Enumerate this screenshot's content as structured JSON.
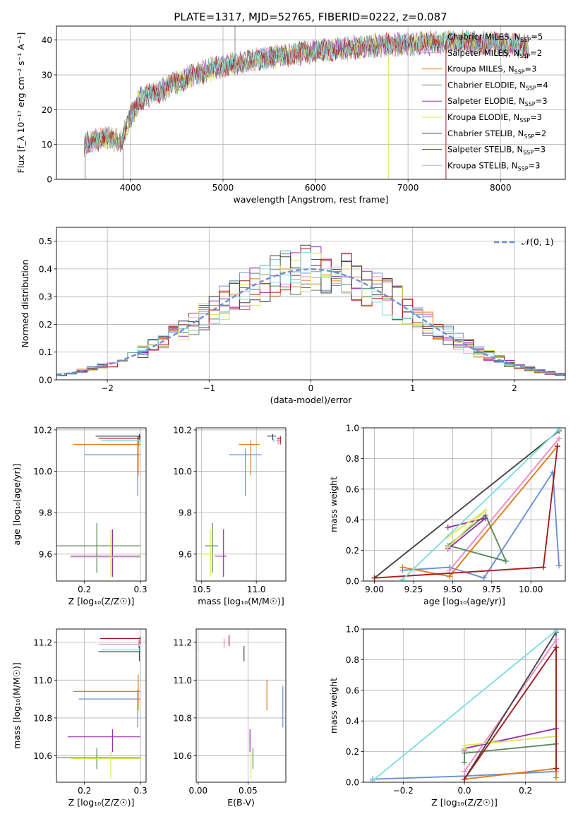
{
  "colors": {
    "chabrier_miles": "#6a8fd4",
    "salpeter_miles": "#e78ac3",
    "kroupa_miles": "#e07b18",
    "chabrier_elodie": "#5b8a5b",
    "salpeter_elodie": "#9a2bb0",
    "kroupa_elodie": "#d9e85a",
    "chabrier_stelib": "#444444",
    "salpeter_stelib": "#a51d1d",
    "kroupa_stelib": "#7fdde0",
    "normal_curve": "#6a8fd4"
  },
  "chart_data": [
    {
      "type": "line",
      "title": "PLATE=1317, MJD=52765, FIBERID=0222, z=0.087",
      "xlabel": "wavelength [Angstrom, rest frame]",
      "ylabel": "Flux [f_λ 10⁻¹⁷ erg cm⁻² s⁻¹ A⁻¹]",
      "xlim": [
        3200,
        8700
      ],
      "ylim": [
        0,
        44
      ],
      "xticks": [
        "4000",
        "5000",
        "6000",
        "7000",
        "8000"
      ],
      "yticks": [
        "0",
        "10",
        "20",
        "30",
        "40"
      ],
      "legend_position": "top-right",
      "legend": [
        {
          "label": "Chabrier MILES, N",
          "sub": "SSP",
          "tail": "=5"
        },
        {
          "label": "Salpeter MILES, N",
          "sub": "SSP",
          "tail": "=2"
        },
        {
          "label": "Kroupa MILES, N",
          "sub": "SSP",
          "tail": "=3"
        },
        {
          "label": "Chabrier ELODIE, N",
          "sub": "SSP",
          "tail": "=4"
        },
        {
          "label": "Salpeter ELODIE, N",
          "sub": "SSP",
          "tail": "=3"
        },
        {
          "label": "Kroupa ELODIE, N",
          "sub": "SSP",
          "tail": "=3"
        },
        {
          "label": "Chabrier STELIB, N",
          "sub": "SSP",
          "tail": "=2"
        },
        {
          "label": "Salpeter STELIB, N",
          "sub": "SSP",
          "tail": "=3"
        },
        {
          "label": "Kroupa STELIB, N",
          "sub": "SSP",
          "tail": "=3"
        }
      ],
      "continuum_x": [
        3500,
        3700,
        3900,
        4000,
        4100,
        4300,
        4500,
        4800,
        5100,
        5500,
        5900,
        6300,
        6700,
        7100,
        7500,
        7900,
        8300
      ],
      "continuum_y": [
        10,
        12,
        11,
        18,
        23,
        25,
        28,
        31,
        33,
        35,
        36.5,
        37.5,
        38.5,
        39,
        39.5,
        39,
        38
      ]
    },
    {
      "type": "bar",
      "subtype": "step-histogram",
      "xlabel": "(data-model)/error",
      "ylabel": "Normed distribution",
      "xlim": [
        -2.5,
        2.5
      ],
      "ylim": [
        0,
        0.55
      ],
      "xticks": [
        "−2",
        "−1",
        "0",
        "1",
        "2"
      ],
      "yticks": [
        "0.0",
        "0.1",
        "0.2",
        "0.3",
        "0.4",
        "0.5"
      ],
      "legend_label": "𝒩(0, 1)",
      "legend_position": "top-right",
      "bin_width": 0.1
    },
    {
      "type": "scatter",
      "xlabel": "Z [log₁₀(Z/Z☉)]",
      "ylabel": "age  [log₁₀(age/yr)]",
      "xlim": [
        0.15,
        0.31
      ],
      "ylim": [
        9.47,
        10.21
      ],
      "xticks": [
        "0.2",
        "0.3"
      ],
      "yticks": [
        "9.6",
        "9.8",
        "10.0",
        "10.2"
      ],
      "points": [
        {
          "model": "chabrier_miles",
          "x": 0.295,
          "xerr": [
            0.2,
            0.3
          ],
          "y": 10.08,
          "yerr": [
            9.88,
            10.17
          ]
        },
        {
          "model": "salpeter_miles",
          "x": 0.297,
          "xerr": [
            0.23,
            0.3
          ],
          "y": 10.16,
          "yerr": [
            10.12,
            10.17
          ]
        },
        {
          "model": "kroupa_miles",
          "x": 0.296,
          "xerr": [
            0.18,
            0.3
          ],
          "y": 10.13,
          "yerr": [
            9.98,
            10.17
          ]
        },
        {
          "model": "chabrier_elodie",
          "x": 0.222,
          "xerr": [
            0.15,
            0.3
          ],
          "y": 9.64,
          "yerr": [
            9.51,
            9.75
          ]
        },
        {
          "model": "salpeter_elodie",
          "x": 0.25,
          "xerr": [
            0.175,
            0.3
          ],
          "y": 9.59,
          "yerr": [
            9.49,
            9.72
          ]
        },
        {
          "model": "kroupa_elodie",
          "x": 0.247,
          "xerr": [
            0.175,
            0.3
          ],
          "y": 9.585,
          "yerr": [
            9.49,
            9.72
          ]
        },
        {
          "model": "chabrier_stelib",
          "x": 0.298,
          "xerr": [
            0.22,
            0.3
          ],
          "y": 10.17,
          "yerr": [
            10.15,
            10.18
          ]
        },
        {
          "model": "salpeter_stelib",
          "x": 0.299,
          "xerr": [
            0.225,
            0.3
          ],
          "y": 10.16,
          "yerr": [
            10.14,
            10.17
          ]
        },
        {
          "model": "kroupa_stelib",
          "x": 0.299,
          "xerr": [
            0.23,
            0.3
          ],
          "y": 10.15,
          "yerr": [
            10.14,
            10.16
          ]
        }
      ]
    },
    {
      "type": "scatter",
      "xlabel": "mass [log₁₀(M/M☉)]",
      "ylabel": "",
      "xlim": [
        10.45,
        11.27
      ],
      "ylim": [
        9.47,
        10.21
      ],
      "xticks": [
        "10.5",
        "11.0"
      ],
      "yticks": [
        "9.6",
        "9.8",
        "10.0",
        "10.2"
      ],
      "points": [
        {
          "model": "chabrier_miles",
          "x": 10.9,
          "xerr": [
            10.75,
            11.05
          ],
          "y": 10.08,
          "yerr": [
            9.88,
            10.11
          ]
        },
        {
          "model": "salpeter_miles",
          "x": 11.2,
          "xerr": [
            11.18,
            11.22
          ],
          "y": 10.15,
          "yerr": [
            10.13,
            10.16
          ]
        },
        {
          "model": "kroupa_miles",
          "x": 10.95,
          "xerr": [
            10.84,
            11.03
          ],
          "y": 10.13,
          "yerr": [
            9.98,
            10.15
          ]
        },
        {
          "model": "chabrier_elodie",
          "x": 10.6,
          "xerr": [
            10.53,
            10.65
          ],
          "y": 9.64,
          "yerr": [
            9.51,
            9.75
          ]
        },
        {
          "model": "salpeter_elodie",
          "x": 10.7,
          "xerr": [
            10.62,
            10.73
          ],
          "y": 9.59,
          "yerr": [
            9.49,
            9.72
          ]
        },
        {
          "model": "kroupa_elodie",
          "x": 10.58,
          "xerr": [
            10.48,
            10.62
          ],
          "y": 9.6,
          "yerr": [
            9.49,
            9.72
          ]
        },
        {
          "model": "chabrier_stelib",
          "x": 11.15,
          "xerr": [
            11.1,
            11.18
          ],
          "y": 10.17,
          "yerr": [
            10.15,
            10.18
          ]
        },
        {
          "model": "salpeter_stelib",
          "x": 11.22,
          "xerr": [
            11.19,
            11.23
          ],
          "y": 10.16,
          "yerr": [
            10.13,
            10.17
          ]
        },
        {
          "model": "kroupa_stelib",
          "x": 11.16,
          "xerr": [
            11.15,
            11.17
          ],
          "y": 10.15,
          "yerr": [
            10.14,
            10.16
          ]
        }
      ]
    },
    {
      "type": "line",
      "xlabel": "age  [log₁₀(age/yr)]",
      "ylabel": "mass weight",
      "xlim": [
        8.93,
        10.22
      ],
      "ylim": [
        0,
        1
      ],
      "xticks": [
        "9.00",
        "9.25",
        "9.50",
        "9.75",
        "10.00"
      ],
      "yticks": [
        "0.0",
        "0.2",
        "0.4",
        "0.6",
        "0.8",
        "1.0"
      ],
      "series": [
        {
          "model": "chabrier_miles",
          "x": [
            9.18,
            9.48,
            9.7,
            10.14,
            10.18
          ],
          "y": [
            0.07,
            0.09,
            0.02,
            0.71,
            0.1
          ]
        },
        {
          "model": "salpeter_miles",
          "x": [
            9.48,
            10.18
          ],
          "y": [
            0.07,
            0.93
          ]
        },
        {
          "model": "kroupa_miles",
          "x": [
            9.18,
            9.48,
            10.17
          ],
          "y": [
            0.09,
            0.03,
            0.88
          ]
        },
        {
          "model": "chabrier_elodie",
          "x": [
            9.47,
            9.71,
            9.84,
            9.48
          ],
          "y": [
            0.23,
            0.43,
            0.13,
            0.23
          ]
        },
        {
          "model": "salpeter_elodie",
          "x": [
            9.47,
            9.71,
            9.47
          ],
          "y": [
            0.21,
            0.41,
            0.35
          ]
        },
        {
          "model": "kroupa_elodie",
          "x": [
            9.47,
            9.71,
            9.47
          ],
          "y": [
            0.22,
            0.46,
            0.29
          ]
        },
        {
          "model": "chabrier_stelib",
          "x": [
            9.0,
            10.18
          ],
          "y": [
            0.02,
            0.98
          ]
        },
        {
          "model": "salpeter_stelib",
          "x": [
            9.0,
            10.08,
            10.17
          ],
          "y": [
            0.02,
            0.09,
            0.88
          ]
        },
        {
          "model": "kroupa_stelib",
          "x": [
            9.18,
            10.18
          ],
          "y": [
            0.01,
            0.99
          ]
        }
      ]
    },
    {
      "type": "scatter",
      "xlabel": "Z [log₁₀(Z/Z☉)]",
      "ylabel": "mass [log₁₀(M/M☉)]",
      "xlim": [
        0.15,
        0.31
      ],
      "ylim": [
        10.46,
        11.27
      ],
      "xticks": [
        "0.2",
        "0.3"
      ],
      "yticks": [
        "10.6",
        "10.8",
        "11.0",
        "11.2"
      ],
      "points": [
        {
          "model": "chabrier_miles",
          "x": 0.295,
          "xerr": [
            0.19,
            0.3
          ],
          "y": 10.9,
          "yerr": [
            10.75,
            10.95
          ]
        },
        {
          "model": "salpeter_miles",
          "x": 0.297,
          "xerr": [
            0.225,
            0.3
          ],
          "y": 11.19,
          "yerr": [
            11.17,
            11.21
          ]
        },
        {
          "model": "kroupa_miles",
          "x": 0.296,
          "xerr": [
            0.18,
            0.3
          ],
          "y": 10.94,
          "yerr": [
            10.84,
            11.03
          ]
        },
        {
          "model": "chabrier_elodie",
          "x": 0.222,
          "xerr": [
            0.15,
            0.3
          ],
          "y": 10.59,
          "yerr": [
            10.53,
            10.64
          ]
        },
        {
          "model": "salpeter_elodie",
          "x": 0.25,
          "xerr": [
            0.17,
            0.3
          ],
          "y": 10.7,
          "yerr": [
            10.62,
            10.74
          ]
        },
        {
          "model": "kroupa_elodie",
          "x": 0.247,
          "xerr": [
            0.175,
            0.3
          ],
          "y": 10.585,
          "yerr": [
            10.48,
            10.62
          ]
        },
        {
          "model": "chabrier_stelib",
          "x": 0.298,
          "xerr": [
            0.225,
            0.3
          ],
          "y": 11.15,
          "yerr": [
            11.1,
            11.18
          ]
        },
        {
          "model": "salpeter_stelib",
          "x": 0.299,
          "xerr": [
            0.228,
            0.3
          ],
          "y": 11.22,
          "yerr": [
            11.19,
            11.23
          ]
        },
        {
          "model": "kroupa_stelib",
          "x": 0.299,
          "xerr": [
            0.232,
            0.3
          ],
          "y": 11.16,
          "yerr": [
            11.15,
            11.17
          ]
        }
      ]
    },
    {
      "type": "scatter",
      "xlabel": "E(B-V)",
      "ylabel": "",
      "xlim": [
        -0.002,
        0.088
      ],
      "ylim": [
        10.46,
        11.27
      ],
      "xticks": [
        "0.00",
        "0.05"
      ],
      "yticks": [
        "10.6",
        "10.8",
        "11.0",
        "11.2"
      ],
      "points": [
        {
          "model": "chabrier_miles",
          "x": 0.085,
          "y": 10.9,
          "yerr": [
            10.75,
            10.97
          ]
        },
        {
          "model": "salpeter_miles",
          "x": 0.026,
          "y": 11.19,
          "yerr": [
            11.17,
            11.22
          ]
        },
        {
          "model": "kroupa_miles",
          "x": 0.069,
          "y": 10.94,
          "yerr": [
            10.84,
            11.0
          ]
        },
        {
          "model": "chabrier_elodie",
          "x": 0.055,
          "y": 10.59,
          "yerr": [
            10.53,
            10.64
          ]
        },
        {
          "model": "salpeter_elodie",
          "x": 0.052,
          "y": 10.7,
          "yerr": [
            10.62,
            10.74
          ]
        },
        {
          "model": "kroupa_elodie",
          "x": 0.053,
          "y": 10.56,
          "yerr": [
            10.48,
            10.62
          ]
        },
        {
          "model": "chabrier_stelib",
          "x": 0.046,
          "y": 11.15,
          "yerr": [
            11.1,
            11.18
          ]
        },
        {
          "model": "salpeter_stelib",
          "x": 0.031,
          "y": 11.21,
          "yerr": [
            11.18,
            11.24
          ]
        },
        {
          "model": "kroupa_stelib",
          "x": 0.0,
          "y": 11.16,
          "yerr": [
            11.15,
            11.17
          ]
        }
      ]
    },
    {
      "type": "line",
      "xlabel": "Z [log₁₀(Z/Z☉)]",
      "ylabel": "mass weight",
      "xlim": [
        -0.33,
        0.33
      ],
      "ylim": [
        0,
        1
      ],
      "xticks": [
        "−0.2",
        "0.0",
        "0.2"
      ],
      "yticks": [
        "0.0",
        "0.2",
        "0.4",
        "0.6",
        "0.8",
        "1.0"
      ],
      "series": [
        {
          "model": "chabrier_miles",
          "x": [
            -0.3,
            0.0,
            0.3,
            0.3
          ],
          "y": [
            0.02,
            0.04,
            0.07,
            0.99
          ]
        },
        {
          "model": "salpeter_miles",
          "x": [
            0.0,
            0.3,
            0.3
          ],
          "y": [
            0.07,
            0.93,
            0.07
          ]
        },
        {
          "model": "kroupa_miles",
          "x": [
            0.0,
            0.3,
            0.3,
            0.3
          ],
          "y": [
            0.02,
            0.09,
            0.88,
            0.03
          ]
        },
        {
          "model": "chabrier_elodie",
          "x": [
            0.0,
            0.0,
            0.3
          ],
          "y": [
            0.13,
            0.19,
            0.25
          ]
        },
        {
          "model": "salpeter_elodie",
          "x": [
            0.0,
            0.0,
            0.3
          ],
          "y": [
            0.21,
            0.22,
            0.35
          ]
        },
        {
          "model": "kroupa_elodie",
          "x": [
            0.0,
            0.0,
            0.3
          ],
          "y": [
            0.22,
            0.24,
            0.3
          ]
        },
        {
          "model": "chabrier_stelib",
          "x": [
            0.0,
            0.3
          ],
          "y": [
            0.02,
            0.98
          ]
        },
        {
          "model": "salpeter_stelib",
          "x": [
            0.0,
            0.3,
            0.3,
            0.3
          ],
          "y": [
            0.02,
            0.88,
            0.09,
            0.09
          ]
        },
        {
          "model": "kroupa_stelib",
          "x": [
            -0.3,
            0.3
          ],
          "y": [
            0.01,
            0.99
          ]
        }
      ]
    }
  ]
}
